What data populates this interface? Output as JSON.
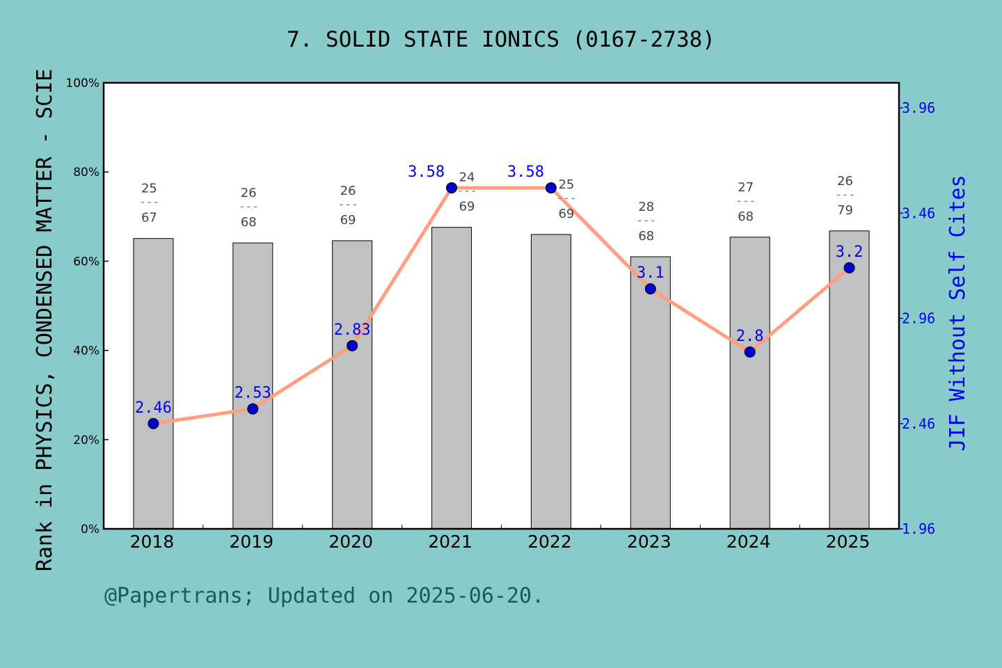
{
  "chart_data": {
    "type": "bar+line",
    "title": "7. SOLID STATE IONICS (0167-2738)",
    "ylabel_left": "Rank in PHYSICS, CONDENSED MATTER - SCIE",
    "ylabel_right": "JIF Without Self Cites",
    "categories": [
      "2018",
      "2019",
      "2020",
      "2021",
      "2022",
      "2023",
      "2024",
      "2025"
    ],
    "left_axis": {
      "range": [
        0,
        100
      ],
      "ticks": [
        "0%",
        "20%",
        "40%",
        "60%",
        "80%",
        "100%"
      ]
    },
    "right_axis": {
      "range": [
        1.96,
        3.96
      ],
      "ticks": [
        "1.96",
        "2.46",
        "2.96",
        "3.46",
        "3.96"
      ]
    },
    "bars": {
      "values_percent": [
        65.1,
        64.1,
        64.6,
        67.6,
        66.0,
        61.0,
        65.4,
        66.8
      ],
      "rank": [
        "25",
        "26",
        "26",
        "24",
        "25",
        "28",
        "27",
        "26"
      ],
      "total": [
        "67",
        "68",
        "69",
        "69",
        "69",
        "68",
        "68",
        "79"
      ],
      "color": "#b7b8b9"
    },
    "line": {
      "values": [
        2.46,
        2.53,
        2.83,
        3.58,
        3.58,
        3.1,
        2.8,
        3.2
      ],
      "labels": [
        "2.46",
        "2.53",
        "2.83",
        "3.58",
        "3.58",
        "3.1",
        "2.8",
        "3.2"
      ],
      "color": "#ff9f7f",
      "marker_color": "#0000cc",
      "label_color": "#0000ee"
    },
    "footer": "@Papertrans; Updated on 2025-06-20."
  }
}
